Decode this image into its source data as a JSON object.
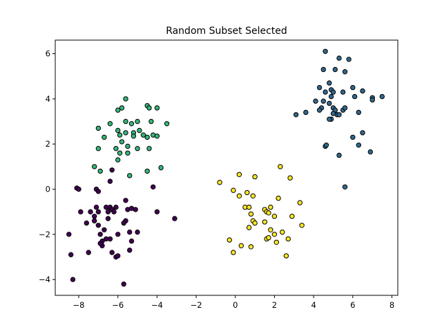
{
  "chart_data": {
    "type": "scatter",
    "title": "Random Subset Selected",
    "xlabel": "",
    "ylabel": "",
    "xlim": [
      -9.2,
      8.3
    ],
    "ylim": [
      -4.7,
      6.6
    ],
    "xticks": [
      -8,
      -6,
      -4,
      -2,
      0,
      2,
      4,
      6,
      8
    ],
    "yticks": [
      -4,
      -2,
      0,
      2,
      4,
      6
    ],
    "xtick_labels": [
      "−8",
      "−6",
      "−4",
      "−2",
      "0",
      "2",
      "4",
      "6",
      "8"
    ],
    "ytick_labels": [
      "−4",
      "−2",
      "0",
      "2",
      "4",
      "6"
    ],
    "grid": false,
    "legend": "none",
    "series": [
      {
        "color": "#440154",
        "points": [
          [
            -8.1,
            0.05
          ],
          [
            -8.0,
            0.0
          ],
          [
            -7.1,
            0.0
          ],
          [
            -7.0,
            -0.1
          ],
          [
            -7.9,
            -1.0
          ],
          [
            -7.4,
            -1.0
          ],
          [
            -7.1,
            -0.8
          ],
          [
            -7.0,
            -1.0
          ],
          [
            -6.6,
            -0.8
          ],
          [
            -6.4,
            -0.8
          ],
          [
            -6.5,
            -1.0
          ],
          [
            -6.3,
            -0.9
          ],
          [
            -6.2,
            -1.0
          ],
          [
            -6.1,
            -0.8
          ],
          [
            -5.6,
            -0.5
          ],
          [
            -5.5,
            -0.9
          ],
          [
            -5.3,
            -0.85
          ],
          [
            -5.1,
            -0.9
          ],
          [
            -7.6,
            -1.5
          ],
          [
            -7.2,
            -1.4
          ],
          [
            -7.0,
            -1.6
          ],
          [
            -6.9,
            -2.0
          ],
          [
            -6.7,
            -1.8
          ],
          [
            -6.8,
            -2.3
          ],
          [
            -6.6,
            -2.2
          ],
          [
            -6.4,
            -2.2
          ],
          [
            -6.0,
            -2.0
          ],
          [
            -5.6,
            -1.4
          ],
          [
            -5.4,
            -1.9
          ],
          [
            -5.3,
            -2.3
          ],
          [
            -5.0,
            -1.9
          ],
          [
            -4.0,
            -1.0
          ],
          [
            -3.1,
            -1.3
          ],
          [
            -8.5,
            -2.0
          ],
          [
            -7.5,
            -2.8
          ],
          [
            -6.8,
            -2.5
          ],
          [
            -6.3,
            -2.8
          ],
          [
            -6.1,
            -3.0
          ],
          [
            -6.0,
            -2.95
          ],
          [
            -5.4,
            -2.7
          ],
          [
            -8.4,
            -2.9
          ],
          [
            -8.3,
            -4.0
          ],
          [
            -5.7,
            -4.2
          ],
          [
            -6.3,
            0.85
          ],
          [
            -6.4,
            0.35
          ],
          [
            -4.2,
            0.1
          ],
          [
            -6.5,
            -1.3
          ],
          [
            -5.7,
            -1.5
          ],
          [
            -6.9,
            -2.4
          ],
          [
            -7.2,
            -1.2
          ]
        ]
      },
      {
        "color": "#35b779",
        "points": [
          [
            -5.6,
            4.0
          ],
          [
            -6.0,
            3.5
          ],
          [
            -5.8,
            3.6
          ],
          [
            -4.5,
            3.7
          ],
          [
            -4.4,
            3.6
          ],
          [
            -4.0,
            3.6
          ],
          [
            -5.6,
            3.0
          ],
          [
            -5.3,
            2.9
          ],
          [
            -5.0,
            3.0
          ],
          [
            -6.4,
            2.9
          ],
          [
            -7.0,
            2.7
          ],
          [
            -6.7,
            2.3
          ],
          [
            -6.0,
            2.6
          ],
          [
            -5.9,
            2.4
          ],
          [
            -5.6,
            2.5
          ],
          [
            -5.2,
            2.5
          ],
          [
            -4.9,
            2.6
          ],
          [
            -4.7,
            2.4
          ],
          [
            -4.2,
            2.4
          ],
          [
            -4.0,
            2.35
          ],
          [
            -3.5,
            2.9
          ],
          [
            -4.5,
            2.3
          ],
          [
            -4.4,
            1.8
          ],
          [
            -5.0,
            1.8
          ],
          [
            -5.5,
            1.6
          ],
          [
            -5.5,
            1.9
          ],
          [
            -5.9,
            1.6
          ],
          [
            -6.1,
            1.8
          ],
          [
            -6.0,
            1.3
          ],
          [
            -7.0,
            1.8
          ],
          [
            -7.2,
            1.0
          ],
          [
            -6.9,
            0.8
          ],
          [
            -5.4,
            0.6
          ],
          [
            -4.5,
            0.8
          ],
          [
            -3.8,
            0.95
          ],
          [
            -4.3,
            3.0
          ],
          [
            -5.2,
            2.35
          ],
          [
            -5.8,
            2.1
          ]
        ]
      },
      {
        "color": "#31688e",
        "points": [
          [
            4.6,
            6.1
          ],
          [
            5.3,
            5.8
          ],
          [
            5.8,
            5.75
          ],
          [
            4.5,
            5.3
          ],
          [
            5.1,
            5.3
          ],
          [
            5.6,
            5.2
          ],
          [
            4.8,
            4.7
          ],
          [
            4.3,
            4.5
          ],
          [
            4.6,
            4.3
          ],
          [
            4.9,
            4.4
          ],
          [
            5.0,
            4.3
          ],
          [
            5.5,
            4.3
          ],
          [
            6.0,
            4.5
          ],
          [
            6.5,
            4.35
          ],
          [
            6.1,
            4.1
          ],
          [
            7.0,
            4.05
          ],
          [
            7.0,
            3.95
          ],
          [
            7.5,
            4.1
          ],
          [
            4.1,
            3.9
          ],
          [
            4.5,
            3.9
          ],
          [
            4.8,
            3.8
          ],
          [
            4.9,
            4.1
          ],
          [
            4.4,
            3.6
          ],
          [
            4.3,
            3.5
          ],
          [
            5.0,
            3.6
          ],
          [
            5.1,
            3.5
          ],
          [
            5.2,
            3.3
          ],
          [
            5.0,
            3.35
          ],
          [
            5.5,
            3.5
          ],
          [
            4.9,
            3.1
          ],
          [
            4.8,
            3.1
          ],
          [
            5.6,
            3.6
          ],
          [
            6.3,
            3.4
          ],
          [
            3.6,
            3.4
          ],
          [
            3.1,
            3.3
          ],
          [
            4.6,
            1.9
          ],
          [
            4.65,
            1.95
          ],
          [
            6.0,
            2.3
          ],
          [
            6.5,
            2.5
          ],
          [
            6.3,
            1.95
          ],
          [
            6.9,
            1.65
          ],
          [
            5.3,
            1.5
          ],
          [
            5.6,
            0.1
          ],
          [
            5.3,
            3.3
          ]
        ]
      },
      {
        "color": "#fde725",
        "points": [
          [
            -0.8,
            0.3
          ],
          [
            0.2,
            0.65
          ],
          [
            1.0,
            0.55
          ],
          [
            2.3,
            1.0
          ],
          [
            2.8,
            0.5
          ],
          [
            -0.1,
            -0.05
          ],
          [
            0.2,
            -0.3
          ],
          [
            0.6,
            -0.15
          ],
          [
            0.9,
            -0.3
          ],
          [
            2.2,
            -0.4
          ],
          [
            0.5,
            -0.8
          ],
          [
            0.7,
            -0.8
          ],
          [
            0.8,
            -1.1
          ],
          [
            1.5,
            -0.9
          ],
          [
            1.6,
            -1.0
          ],
          [
            1.8,
            -0.8
          ],
          [
            1.7,
            -1.05
          ],
          [
            2.0,
            -1.2
          ],
          [
            3.3,
            -0.6
          ],
          [
            2.9,
            -1.2
          ],
          [
            3.4,
            -1.6
          ],
          [
            0.9,
            -1.4
          ],
          [
            1.0,
            -1.5
          ],
          [
            0.7,
            -1.7
          ],
          [
            1.5,
            -1.45
          ],
          [
            1.8,
            -1.8
          ],
          [
            2.0,
            -2.0
          ],
          [
            2.4,
            -1.9
          ],
          [
            2.7,
            -2.2
          ],
          [
            -0.3,
            -2.25
          ],
          [
            0.3,
            -2.5
          ],
          [
            0.8,
            -2.55
          ],
          [
            1.6,
            -2.2
          ],
          [
            1.7,
            -2.15
          ],
          [
            2.1,
            -2.35
          ],
          [
            -0.1,
            -2.8
          ],
          [
            2.6,
            -2.95
          ]
        ]
      }
    ]
  }
}
